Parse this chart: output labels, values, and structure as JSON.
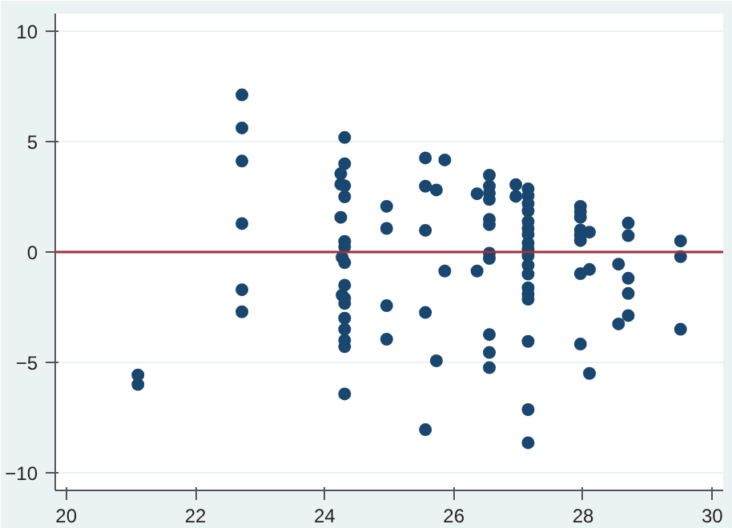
{
  "chart_data": {
    "type": "scatter",
    "color": "#1a476f",
    "marker": "circle",
    "grid": "y",
    "x": [
      21.11,
      21.11,
      22.72,
      22.72,
      22.72,
      22.72,
      22.72,
      22.72,
      24.31,
      24.31,
      24.25,
      24.25,
      24.31,
      24.31,
      24.25,
      24.31,
      24.31,
      24.27,
      24.31,
      24.31,
      24.27,
      24.31,
      24.31,
      24.31,
      24.31,
      24.31,
      24.31,
      24.31,
      24.96,
      24.96,
      24.96,
      24.96,
      25.56,
      25.56,
      25.56,
      25.56,
      25.56,
      25.73,
      25.73,
      25.86,
      25.86,
      26.36,
      26.36,
      26.55,
      26.55,
      26.55,
      26.55,
      26.55,
      26.55,
      26.55,
      26.55,
      26.55,
      26.55,
      26.55,
      26.96,
      26.96,
      27.15,
      27.15,
      27.15,
      27.15,
      27.15,
      27.15,
      27.15,
      27.15,
      27.15,
      27.15,
      27.15,
      27.15,
      27.15,
      27.15,
      27.15,
      27.15,
      27.15,
      27.15,
      27.96,
      27.96,
      27.96,
      27.96,
      27.96,
      27.96,
      27.96,
      27.96,
      28.1,
      28.1,
      28.1,
      28.55,
      28.55,
      28.7,
      28.7,
      28.7,
      28.7,
      28.7,
      29.51,
      29.51,
      29.51
    ],
    "values": [
      -5.57,
      -6.0,
      7.12,
      5.62,
      4.12,
      1.29,
      -1.71,
      -2.71,
      5.19,
      4.0,
      3.55,
      3.07,
      3.0,
      2.5,
      1.57,
      0.48,
      0.24,
      -0.24,
      -0.48,
      -1.5,
      -1.95,
      -2.1,
      -2.33,
      -3.0,
      -3.5,
      -4.0,
      -4.29,
      -6.43,
      2.07,
      1.07,
      -2.43,
      -3.95,
      4.26,
      2.98,
      0.98,
      -2.74,
      -8.05,
      2.81,
      -4.93,
      4.17,
      -0.86,
      2.64,
      -0.86,
      3.48,
      2.98,
      2.67,
      2.38,
      1.48,
      1.24,
      -0.05,
      -0.29,
      -3.74,
      -4.55,
      -5.24,
      3.05,
      2.52,
      2.86,
      2.55,
      2.19,
      1.86,
      1.38,
      1.07,
      0.79,
      0.4,
      0.12,
      -0.17,
      -0.6,
      -1.0,
      -1.62,
      -1.9,
      -2.14,
      -4.05,
      -7.14,
      -8.64,
      2.07,
      1.83,
      1.57,
      1.0,
      0.76,
      0.52,
      -0.98,
      -4.17,
      0.9,
      -0.79,
      -5.5,
      -0.55,
      -3.26,
      1.31,
      0.74,
      -1.19,
      -1.88,
      -2.88,
      0.5,
      -0.21,
      -3.5
    ],
    "xlim": [
      19.83,
      30.17
    ],
    "ylim": [
      -10.8,
      10.8
    ],
    "xticks": [
      20,
      22,
      24,
      26,
      28,
      30
    ],
    "yticks": [
      -10,
      -5,
      0,
      5,
      10
    ],
    "ref_lines": [
      {
        "axis": "y",
        "value": 0,
        "color": "#a0303f"
      }
    ]
  }
}
